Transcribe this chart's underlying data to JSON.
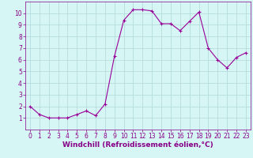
{
  "x": [
    0,
    1,
    2,
    3,
    4,
    5,
    6,
    7,
    8,
    9,
    10,
    11,
    12,
    13,
    14,
    15,
    16,
    17,
    18,
    19,
    20,
    21,
    22,
    23
  ],
  "y": [
    2.0,
    1.3,
    1.0,
    1.0,
    1.0,
    1.3,
    1.6,
    1.2,
    2.2,
    6.3,
    9.4,
    10.3,
    10.3,
    10.2,
    9.1,
    9.1,
    8.5,
    9.3,
    10.1,
    7.0,
    6.0,
    5.3,
    6.2,
    6.6
  ],
  "line_color": "#990099",
  "marker": "+",
  "marker_size": 3,
  "marker_linewidth": 0.8,
  "bg_color": "#d6f5f5",
  "grid_color": "#b0d8d8",
  "xlabel": "Windchill (Refroidissement éolien,°C)",
  "xlabel_fontsize": 6.5,
  "tick_label_color": "#880088",
  "xlabel_color": "#880088",
  "xlim": [
    -0.5,
    23.5
  ],
  "ylim": [
    0,
    11
  ],
  "yticks": [
    1,
    2,
    3,
    4,
    5,
    6,
    7,
    8,
    9,
    10
  ],
  "xticks": [
    0,
    1,
    2,
    3,
    4,
    5,
    6,
    7,
    8,
    9,
    10,
    11,
    12,
    13,
    14,
    15,
    16,
    17,
    18,
    19,
    20,
    21,
    22,
    23
  ],
  "tick_fontsize": 5.5,
  "linewidth": 0.8
}
